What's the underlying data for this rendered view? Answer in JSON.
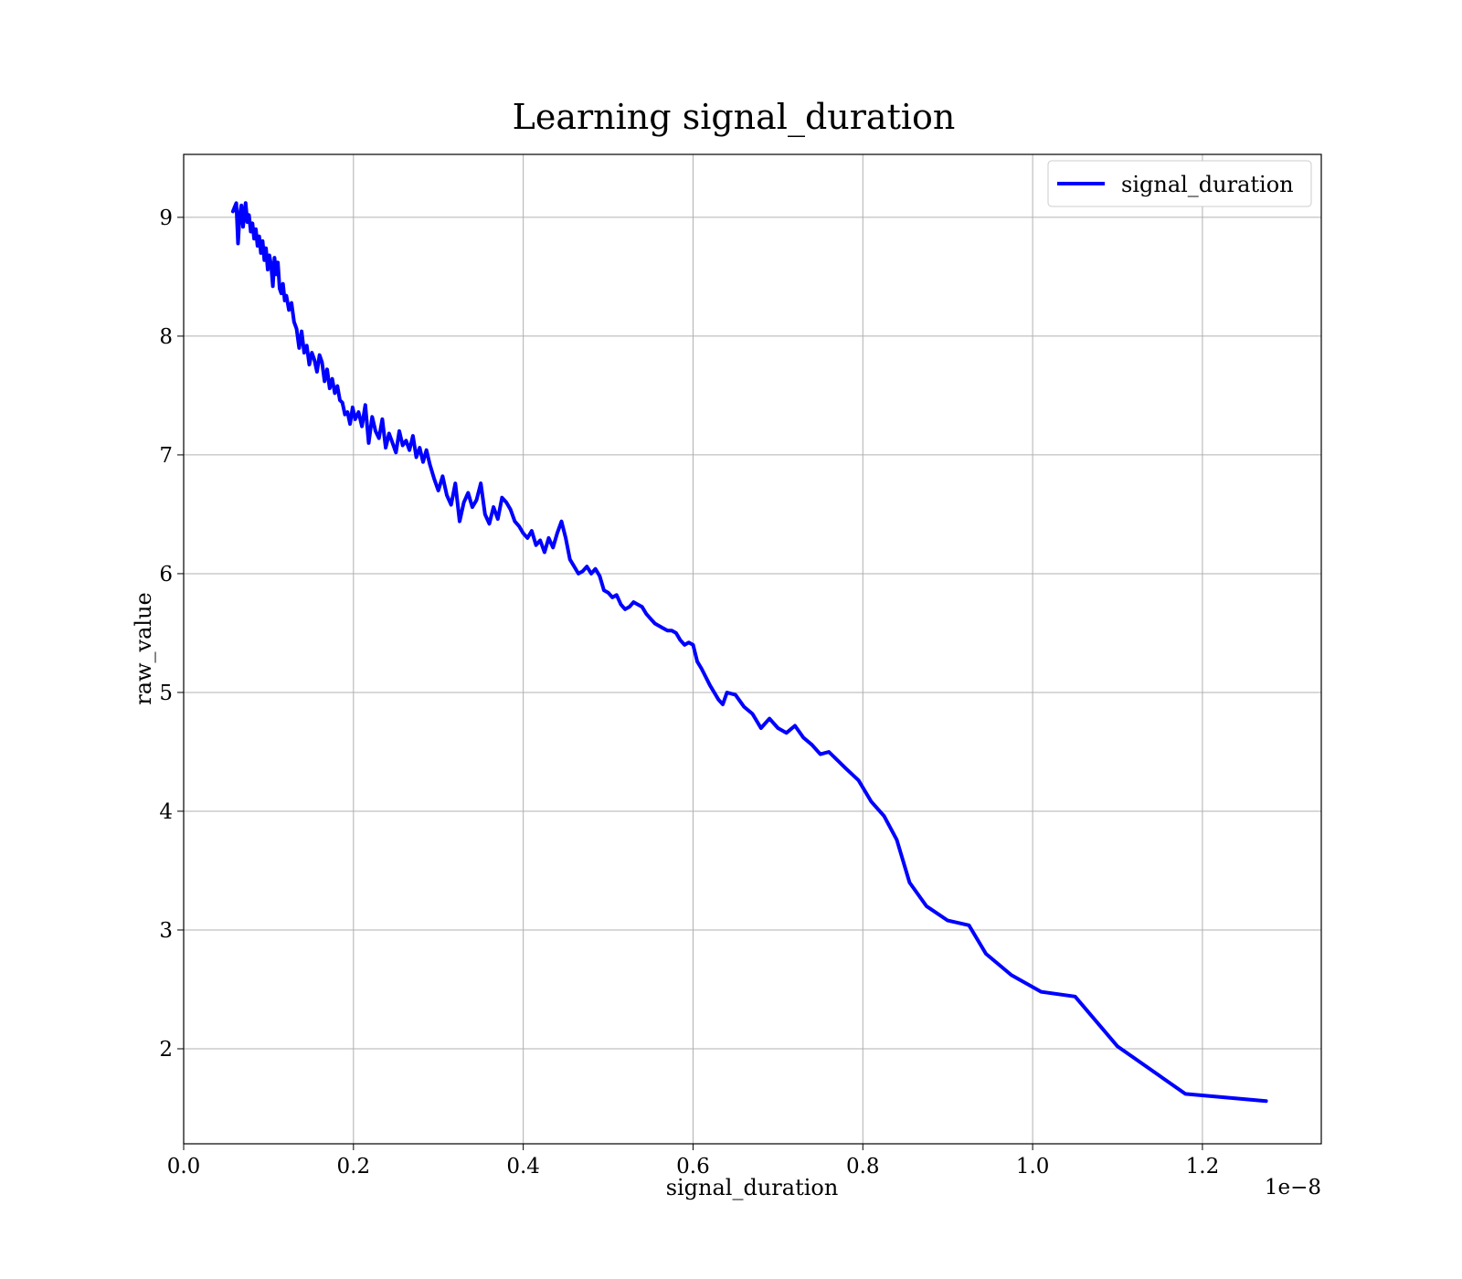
{
  "chart_data": {
    "type": "line",
    "title": "Learning signal_duration",
    "xlabel": "signal_duration",
    "ylabel": "raw_value",
    "x_offset_text": "1e−8",
    "x_scale_factor": 1e-08,
    "xlim": [
      0.0,
      1.34
    ],
    "ylim": [
      1.2,
      9.53
    ],
    "xticks": [
      0.0,
      0.2,
      0.4,
      0.6,
      0.8,
      1.0,
      1.2
    ],
    "xtick_labels": [
      "0.0",
      "0.2",
      "0.4",
      "0.6",
      "0.8",
      "1.0",
      "1.2"
    ],
    "yticks": [
      2,
      3,
      4,
      5,
      6,
      7,
      8,
      9
    ],
    "ytick_labels": [
      "2",
      "3",
      "4",
      "5",
      "6",
      "7",
      "8",
      "9"
    ],
    "grid": true,
    "legend_position": "top-right",
    "series": [
      {
        "name": "signal_duration",
        "color": "#0000ff",
        "x": [
          0.058,
          0.062,
          0.064,
          0.066,
          0.068,
          0.07,
          0.073,
          0.075,
          0.077,
          0.079,
          0.081,
          0.083,
          0.085,
          0.087,
          0.089,
          0.091,
          0.093,
          0.095,
          0.097,
          0.099,
          0.101,
          0.103,
          0.105,
          0.107,
          0.109,
          0.111,
          0.113,
          0.115,
          0.117,
          0.119,
          0.121,
          0.124,
          0.127,
          0.13,
          0.133,
          0.136,
          0.139,
          0.142,
          0.145,
          0.148,
          0.151,
          0.154,
          0.157,
          0.16,
          0.163,
          0.166,
          0.169,
          0.172,
          0.175,
          0.178,
          0.181,
          0.184,
          0.187,
          0.19,
          0.193,
          0.196,
          0.199,
          0.202,
          0.206,
          0.21,
          0.214,
          0.218,
          0.222,
          0.226,
          0.23,
          0.234,
          0.238,
          0.242,
          0.246,
          0.25,
          0.254,
          0.258,
          0.262,
          0.266,
          0.27,
          0.274,
          0.278,
          0.282,
          0.286,
          0.29,
          0.295,
          0.3,
          0.305,
          0.31,
          0.315,
          0.32,
          0.325,
          0.33,
          0.335,
          0.34,
          0.345,
          0.35,
          0.355,
          0.36,
          0.365,
          0.37,
          0.375,
          0.38,
          0.385,
          0.39,
          0.395,
          0.4,
          0.405,
          0.41,
          0.415,
          0.42,
          0.425,
          0.43,
          0.435,
          0.44,
          0.445,
          0.45,
          0.455,
          0.46,
          0.465,
          0.47,
          0.475,
          0.48,
          0.485,
          0.49,
          0.495,
          0.5,
          0.505,
          0.51,
          0.515,
          0.52,
          0.525,
          0.53,
          0.535,
          0.54,
          0.545,
          0.55,
          0.555,
          0.56,
          0.565,
          0.57,
          0.575,
          0.58,
          0.585,
          0.59,
          0.595,
          0.6,
          0.605,
          0.61,
          0.62,
          0.63,
          0.635,
          0.64,
          0.65,
          0.66,
          0.67,
          0.68,
          0.69,
          0.7,
          0.71,
          0.72,
          0.73,
          0.74,
          0.75,
          0.76,
          0.78,
          0.795,
          0.81,
          0.825,
          0.84,
          0.855,
          0.875,
          0.9,
          0.925,
          0.945,
          0.975,
          1.01,
          1.05,
          1.1,
          1.18,
          1.275
        ],
        "y": [
          9.05,
          9.12,
          8.78,
          9.02,
          9.1,
          8.92,
          9.12,
          8.96,
          9.02,
          8.88,
          8.95,
          8.82,
          8.9,
          8.76,
          8.84,
          8.7,
          8.8,
          8.64,
          8.74,
          8.56,
          8.68,
          8.6,
          8.42,
          8.66,
          8.52,
          8.62,
          8.4,
          8.36,
          8.44,
          8.3,
          8.34,
          8.22,
          8.28,
          8.12,
          8.06,
          7.9,
          8.04,
          7.86,
          7.92,
          7.76,
          7.86,
          7.8,
          7.7,
          7.84,
          7.78,
          7.62,
          7.72,
          7.56,
          7.64,
          7.52,
          7.58,
          7.46,
          7.44,
          7.34,
          7.36,
          7.26,
          7.4,
          7.3,
          7.36,
          7.24,
          7.42,
          7.1,
          7.32,
          7.2,
          7.14,
          7.3,
          7.06,
          7.18,
          7.1,
          7.02,
          7.2,
          7.08,
          7.12,
          7.04,
          7.16,
          6.98,
          7.06,
          6.94,
          7.04,
          6.92,
          6.8,
          6.7,
          6.82,
          6.66,
          6.58,
          6.76,
          6.44,
          6.6,
          6.68,
          6.56,
          6.62,
          6.76,
          6.5,
          6.42,
          6.56,
          6.46,
          6.64,
          6.6,
          6.54,
          6.44,
          6.4,
          6.34,
          6.3,
          6.36,
          6.24,
          6.28,
          6.18,
          6.3,
          6.22,
          6.34,
          6.44,
          6.3,
          6.12,
          6.06,
          6.0,
          6.02,
          6.06,
          6.0,
          6.04,
          5.98,
          5.86,
          5.84,
          5.8,
          5.82,
          5.74,
          5.7,
          5.72,
          5.76,
          5.74,
          5.72,
          5.66,
          5.62,
          5.58,
          5.56,
          5.54,
          5.52,
          5.52,
          5.5,
          5.44,
          5.4,
          5.42,
          5.4,
          5.26,
          5.2,
          5.06,
          4.94,
          4.9,
          5.0,
          4.98,
          4.88,
          4.82,
          4.7,
          4.78,
          4.7,
          4.66,
          4.72,
          4.62,
          4.56,
          4.48,
          4.5,
          4.36,
          4.26,
          4.08,
          3.96,
          3.76,
          3.4,
          3.2,
          3.08,
          3.04,
          2.8,
          2.62,
          2.48,
          2.44,
          2.02,
          1.62,
          1.56
        ]
      }
    ]
  }
}
